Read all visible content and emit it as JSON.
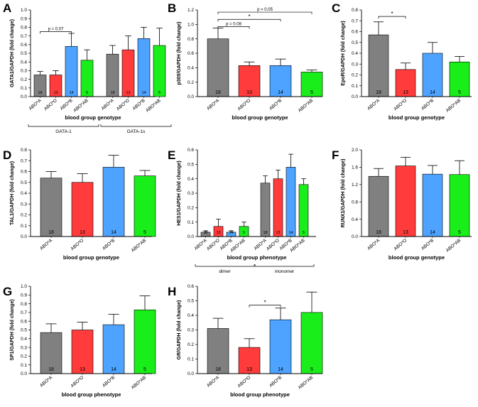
{
  "figure": {
    "colors": {
      "gray": "#808080",
      "red": "#ff3b3b",
      "blue": "#4da3ff",
      "green": "#1aee1a",
      "axis": "#000000"
    }
  },
  "chart_data": [
    {
      "panel": "A",
      "type": "bar",
      "ylabel": "GATA1/GAPDH (fold change)",
      "xlabel": "blood group genotype",
      "ylim": [
        0,
        1.0
      ],
      "yticks": [
        0,
        0.1,
        0.2,
        0.3,
        0.4,
        0.5,
        0.6,
        0.7,
        0.8,
        0.9,
        1.0
      ],
      "categories": [
        "ABO*A",
        "ABO*O",
        "ABO*B",
        "ABO*AB",
        "ABO*A",
        "ABO*O",
        "ABO*B",
        "ABO*AB"
      ],
      "values": [
        0.25,
        0.25,
        0.58,
        0.42,
        0.49,
        0.54,
        0.67,
        0.59
      ],
      "errors": [
        0.04,
        0.05,
        0.15,
        0.12,
        0.1,
        0.16,
        0.13,
        0.2
      ],
      "n": [
        "18",
        "13",
        "14",
        "5",
        "18",
        "13",
        "14",
        "5"
      ],
      "colors": [
        "gray",
        "red",
        "blue",
        "green",
        "gray",
        "red",
        "blue",
        "green"
      ],
      "groups": [
        {
          "label": "GATA-1",
          "from": 0,
          "to": 3
        },
        {
          "label": "GATA-1s",
          "from": 4,
          "to": 7
        }
      ],
      "brackets": [
        {
          "from": 0,
          "to": 2,
          "y": 0.75,
          "label": "p = 0.07"
        }
      ]
    },
    {
      "panel": "B",
      "type": "bar",
      "ylabel": "p300/GAPDH (fold change)",
      "xlabel": "blood group genotype",
      "ylim": [
        0,
        1.2
      ],
      "yticks": [
        0,
        0.2,
        0.4,
        0.6,
        0.8,
        1.0,
        1.2
      ],
      "categories": [
        "ABO*A",
        "ABO*O",
        "ABO*B",
        "ABO*AB"
      ],
      "values": [
        0.8,
        0.43,
        0.43,
        0.34
      ],
      "errors": [
        0.15,
        0.05,
        0.09,
        0.03
      ],
      "n": [
        "18",
        "13",
        "14",
        "5"
      ],
      "colors": [
        "gray",
        "red",
        "blue",
        "green"
      ],
      "brackets": [
        {
          "from": 0,
          "to": 1,
          "y": 0.97,
          "label": "p = 0.08"
        },
        {
          "from": 0,
          "to": 2,
          "y": 1.07,
          "label": "*"
        },
        {
          "from": 0,
          "to": 3,
          "y": 1.17,
          "label": "p = 0.05"
        }
      ]
    },
    {
      "panel": "C",
      "type": "bar",
      "ylabel": "EpoR/GAPDH (fold change)",
      "xlabel": "blood group genotype",
      "ylim": [
        0,
        0.8
      ],
      "yticks": [
        0,
        0.1,
        0.2,
        0.3,
        0.4,
        0.5,
        0.6,
        0.7,
        0.8
      ],
      "categories": [
        "ABO*A",
        "ABO*O",
        "ABO*B",
        "ABO*AB"
      ],
      "values": [
        0.57,
        0.25,
        0.4,
        0.32
      ],
      "errors": [
        0.12,
        0.06,
        0.1,
        0.05
      ],
      "n": [
        "18",
        "13",
        "14",
        "5"
      ],
      "colors": [
        "gray",
        "red",
        "blue",
        "green"
      ],
      "brackets": [
        {
          "from": 0,
          "to": 1,
          "y": 0.74,
          "label": "*"
        }
      ]
    },
    {
      "panel": "D",
      "type": "bar",
      "ylabel": "TAL1/GAPDH (fold change)",
      "xlabel": "blood group genotype",
      "ylim": [
        0,
        0.8
      ],
      "yticks": [
        0,
        0.1,
        0.2,
        0.3,
        0.4,
        0.5,
        0.6,
        0.7,
        0.8
      ],
      "categories": [
        "ABO*A",
        "ABO*O",
        "ABO*B",
        "ABO*AB"
      ],
      "values": [
        0.54,
        0.5,
        0.64,
        0.56
      ],
      "errors": [
        0.06,
        0.08,
        0.11,
        0.05
      ],
      "n": [
        "18",
        "13",
        "14",
        "5"
      ],
      "colors": [
        "gray",
        "red",
        "blue",
        "green"
      ]
    },
    {
      "panel": "E",
      "type": "bar",
      "ylabel": "HES1/GAPDH (fold change)",
      "xlabel": "blood group phenotype",
      "ylim": [
        0,
        0.6
      ],
      "yticks": [
        0,
        0.1,
        0.2,
        0.3,
        0.4,
        0.5,
        0.6
      ],
      "categories": [
        "ABO*A",
        "ABO*O",
        "ABO*B",
        "ABO*AB",
        "ABO*A",
        "ABO*O",
        "ABO*B",
        "ABO*AB"
      ],
      "values": [
        0.03,
        0.07,
        0.03,
        0.07,
        0.37,
        0.4,
        0.48,
        0.36
      ],
      "errors": [
        0.01,
        0.05,
        0.01,
        0.03,
        0.05,
        0.06,
        0.09,
        0.04
      ],
      "n": [
        "18",
        "13",
        "14",
        "5",
        "18",
        "13",
        "14",
        "5"
      ],
      "colors": [
        "gray",
        "red",
        "blue",
        "green",
        "gray",
        "red",
        "blue",
        "green"
      ],
      "groups": [
        {
          "label": "dimer",
          "from": 0,
          "to": 3
        },
        {
          "label": "monomer",
          "from": 4,
          "to": 7
        }
      ]
    },
    {
      "panel": "F",
      "type": "bar",
      "ylabel": "RUNX1/GAPDH (fold change)",
      "xlabel": "blood group genotype",
      "ylim": [
        0,
        2.0
      ],
      "yticks": [
        0,
        0.4,
        0.8,
        1.2,
        1.6,
        2.0
      ],
      "categories": [
        "ABO*A",
        "ABO*O",
        "ABO*B",
        "ABO*AB"
      ],
      "values": [
        1.39,
        1.63,
        1.44,
        1.43
      ],
      "errors": [
        0.18,
        0.2,
        0.2,
        0.32
      ],
      "n": [
        "18",
        "13",
        "14",
        "5"
      ],
      "colors": [
        "gray",
        "red",
        "blue",
        "green"
      ]
    },
    {
      "panel": "G",
      "type": "bar",
      "ylabel": "SP1/GAPDH (fold change)",
      "xlabel": "blood group phenotype",
      "ylim": [
        0,
        1.0
      ],
      "yticks": [
        0,
        0.1,
        0.2,
        0.3,
        0.4,
        0.5,
        0.6,
        0.7,
        0.8,
        0.9,
        1.0
      ],
      "categories": [
        "ABO*A",
        "ABO*O",
        "ABO*B",
        "ABO*AB"
      ],
      "values": [
        0.47,
        0.5,
        0.56,
        0.73
      ],
      "errors": [
        0.1,
        0.09,
        0.12,
        0.16
      ],
      "n": [
        "18",
        "13",
        "14",
        "5"
      ],
      "colors": [
        "gray",
        "red",
        "blue",
        "green"
      ]
    },
    {
      "panel": "H",
      "type": "bar",
      "ylabel": "GR/GAPDH (fold change)",
      "xlabel": "blood group phenotype",
      "ylim": [
        0,
        0.6
      ],
      "yticks": [
        0,
        0.1,
        0.2,
        0.3,
        0.4,
        0.5,
        0.6
      ],
      "categories": [
        "ABO*A",
        "ABO*O",
        "ABO*B",
        "ABO*AB"
      ],
      "values": [
        0.31,
        0.18,
        0.37,
        0.42
      ],
      "errors": [
        0.07,
        0.06,
        0.08,
        0.14
      ],
      "n": [
        "18",
        "13",
        "14",
        "5"
      ],
      "colors": [
        "gray",
        "red",
        "blue",
        "green"
      ],
      "brackets": [
        {
          "from": 1,
          "to": 2,
          "y": 0.47,
          "label": "*"
        }
      ]
    }
  ]
}
